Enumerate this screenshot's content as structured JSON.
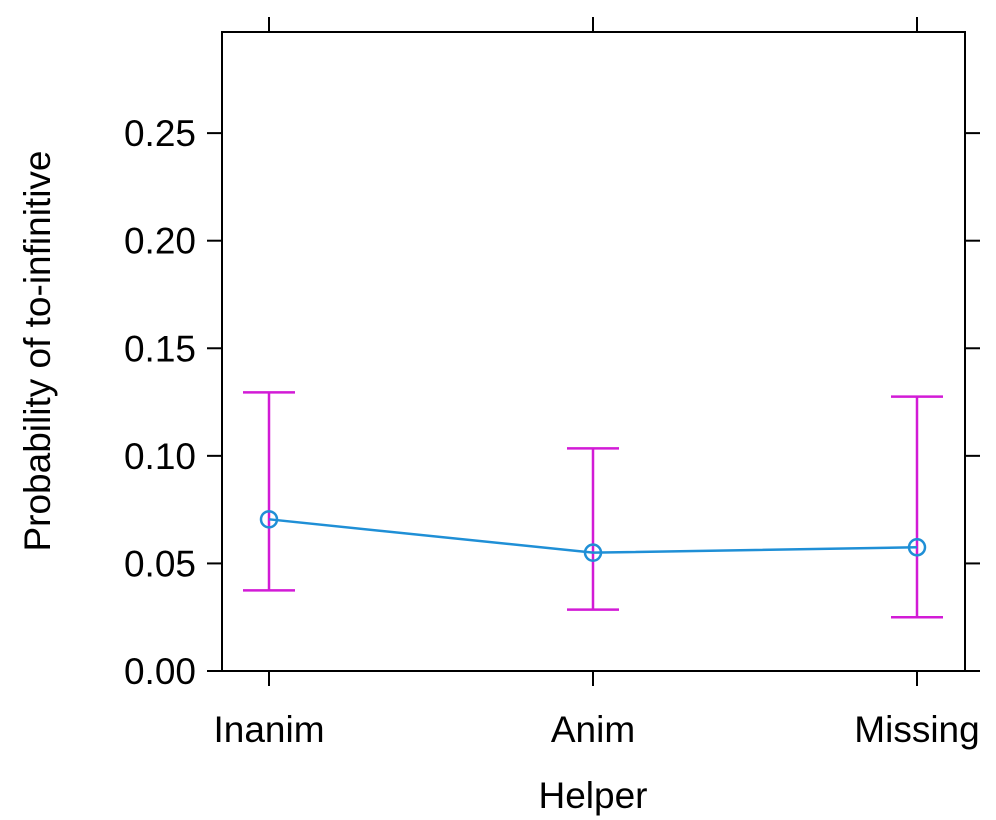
{
  "chart_data": {
    "type": "line",
    "title": "",
    "xlabel": "Helper",
    "ylabel": "Probability of to-infinitive",
    "categories": [
      "Inanim",
      "Anim",
      "Missing"
    ],
    "series": [
      {
        "values": [
          0.0705,
          0.055,
          0.0575
        ],
        "lower": [
          0.0375,
          0.0285,
          0.025
        ],
        "upper": [
          0.1295,
          0.1035,
          0.1275
        ]
      }
    ],
    "y_ticks": [
      "0.00",
      "0.05",
      "0.10",
      "0.15",
      "0.20",
      "0.25"
    ],
    "ylim": [
      0.0,
      0.297
    ],
    "grid": false,
    "legend": "none",
    "colors": {
      "line": "#1f8fd6",
      "point": "#1f8fd6",
      "errorbar": "#d21bd6",
      "axis": "#000000"
    }
  }
}
